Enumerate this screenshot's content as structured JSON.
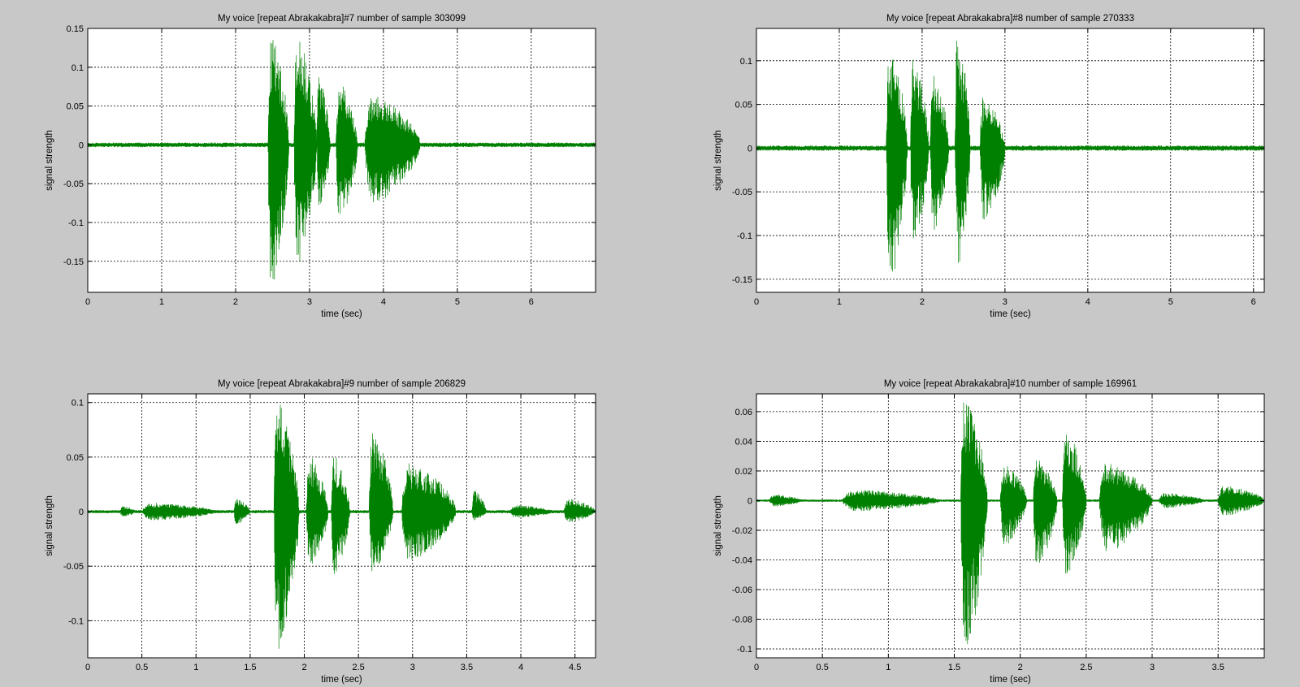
{
  "window": {
    "background": "#c8c8c8"
  },
  "colors": {
    "signal": "#008000",
    "axes_bg": "#ffffff",
    "frame": "#000000",
    "grid": "#000000"
  },
  "chart_data": [
    {
      "type": "line",
      "title": "My voice [repeat Abrakakabra]#7 number of sample 303099",
      "xlabel": "time (sec)",
      "ylabel": "signal strength",
      "xlim": [
        0,
        6.87
      ],
      "ylim": [
        -0.19,
        0.15
      ],
      "xticks": [
        0,
        1,
        2,
        3,
        4,
        5,
        6
      ],
      "yticks": [
        -0.15,
        -0.1,
        -0.05,
        0,
        0.05,
        0.1,
        0.15
      ],
      "ytick_labels": [
        "-0.15",
        "-0.1",
        "-0.05",
        "0",
        "0.05",
        "0.1",
        "0.15"
      ],
      "grid": true,
      "series": [
        {
          "color": "#008000"
        }
      ],
      "envelope": {
        "t_end": 6.87,
        "noise": 0.003,
        "bursts": [
          {
            "start": 2.44,
            "end": 2.72,
            "upper": 0.145,
            "lower": -0.185
          },
          {
            "start": 2.79,
            "end": 3.1,
            "upper": 0.14,
            "lower": -0.155
          },
          {
            "start": 3.1,
            "end": 3.28,
            "upper": 0.09,
            "lower": -0.09
          },
          {
            "start": 3.36,
            "end": 3.65,
            "upper": 0.08,
            "lower": -0.1
          },
          {
            "start": 3.75,
            "end": 4.5,
            "upper": 0.065,
            "lower": -0.075
          }
        ]
      }
    },
    {
      "type": "line",
      "title": "My voice [repeat Abrakakabra]#8 number of sample 270333",
      "xlabel": "time (sec)",
      "ylabel": "signal strength",
      "xlim": [
        0,
        6.13
      ],
      "ylim": [
        -0.165,
        0.137
      ],
      "xticks": [
        0,
        1,
        2,
        3,
        4,
        5,
        6
      ],
      "yticks": [
        -0.15,
        -0.1,
        -0.05,
        0,
        0.05,
        0.1
      ],
      "ytick_labels": [
        "-0.15",
        "-0.1",
        "-0.05",
        "0",
        "0.05",
        "0.1"
      ],
      "grid": true,
      "series": [
        {
          "color": "#008000"
        }
      ],
      "envelope": {
        "t_end": 6.13,
        "noise": 0.003,
        "bursts": [
          {
            "start": 1.57,
            "end": 1.82,
            "upper": 0.12,
            "lower": -0.16
          },
          {
            "start": 1.86,
            "end": 2.08,
            "upper": 0.105,
            "lower": -0.11
          },
          {
            "start": 2.1,
            "end": 2.32,
            "upper": 0.09,
            "lower": -0.1
          },
          {
            "start": 2.4,
            "end": 2.58,
            "upper": 0.135,
            "lower": -0.135
          },
          {
            "start": 2.7,
            "end": 3.0,
            "upper": 0.06,
            "lower": -0.085
          }
        ]
      }
    },
    {
      "type": "line",
      "title": "My voice [repeat Abrakakabra]#9 number of sample 206829",
      "xlabel": "time (sec)",
      "ylabel": "signal strength",
      "xlim": [
        0,
        4.69
      ],
      "ylim": [
        -0.134,
        0.108
      ],
      "xticks": [
        0,
        0.5,
        1,
        1.5,
        2,
        2.5,
        3,
        3.5,
        4,
        4.5
      ],
      "yticks": [
        -0.1,
        -0.05,
        0,
        0.05,
        0.1
      ],
      "ytick_labels": [
        "-0.1",
        "-0.05",
        "0",
        "0.05",
        "0.1"
      ],
      "grid": true,
      "series": [
        {
          "color": "#008000"
        }
      ],
      "envelope": {
        "t_end": 4.69,
        "noise": 0.0015,
        "bursts": [
          {
            "start": 0.3,
            "end": 0.45,
            "upper": 0.005,
            "lower": -0.005
          },
          {
            "start": 0.5,
            "end": 1.2,
            "upper": 0.008,
            "lower": -0.008
          },
          {
            "start": 1.35,
            "end": 1.5,
            "upper": 0.012,
            "lower": -0.012
          },
          {
            "start": 1.72,
            "end": 1.95,
            "upper": 0.1,
            "lower": -0.13
          },
          {
            "start": 2.02,
            "end": 2.22,
            "upper": 0.05,
            "lower": -0.05
          },
          {
            "start": 2.25,
            "end": 2.42,
            "upper": 0.05,
            "lower": -0.06
          },
          {
            "start": 2.6,
            "end": 2.82,
            "upper": 0.075,
            "lower": -0.055
          },
          {
            "start": 2.9,
            "end": 3.4,
            "upper": 0.045,
            "lower": -0.045
          },
          {
            "start": 3.55,
            "end": 3.68,
            "upper": 0.02,
            "lower": -0.008
          },
          {
            "start": 3.9,
            "end": 4.3,
            "upper": 0.006,
            "lower": -0.006
          },
          {
            "start": 4.4,
            "end": 4.69,
            "upper": 0.012,
            "lower": -0.01
          }
        ]
      }
    },
    {
      "type": "line",
      "title": "My voice [repeat Abrakakabra]#10 number of sample 169961",
      "xlabel": "time (sec)",
      "ylabel": "signal strength",
      "xlim": [
        0,
        3.85
      ],
      "ylim": [
        -0.106,
        0.072
      ],
      "xticks": [
        0,
        0.5,
        1,
        1.5,
        2,
        2.5,
        3,
        3.5
      ],
      "yticks": [
        -0.1,
        -0.08,
        -0.06,
        -0.04,
        -0.02,
        0,
        0.02,
        0.04,
        0.06
      ],
      "ytick_labels": [
        "-0.1",
        "-0.08",
        "-0.06",
        "-0.04",
        "-0.02",
        "0",
        "0.02",
        "0.04",
        "0.06"
      ],
      "grid": true,
      "series": [
        {
          "color": "#008000"
        }
      ],
      "envelope": {
        "t_end": 3.85,
        "noise": 0.0008,
        "bursts": [
          {
            "start": 0.1,
            "end": 0.35,
            "upper": 0.004,
            "lower": -0.004
          },
          {
            "start": 0.65,
            "end": 1.4,
            "upper": 0.007,
            "lower": -0.007
          },
          {
            "start": 1.55,
            "end": 1.75,
            "upper": 0.07,
            "lower": -0.103
          },
          {
            "start": 1.85,
            "end": 2.05,
            "upper": 0.025,
            "lower": -0.03
          },
          {
            "start": 2.1,
            "end": 2.28,
            "upper": 0.028,
            "lower": -0.045
          },
          {
            "start": 2.32,
            "end": 2.5,
            "upper": 0.048,
            "lower": -0.05
          },
          {
            "start": 2.6,
            "end": 3.0,
            "upper": 0.025,
            "lower": -0.035
          },
          {
            "start": 3.05,
            "end": 3.4,
            "upper": 0.005,
            "lower": -0.005
          },
          {
            "start": 3.5,
            "end": 3.85,
            "upper": 0.01,
            "lower": -0.01
          }
        ]
      }
    }
  ]
}
